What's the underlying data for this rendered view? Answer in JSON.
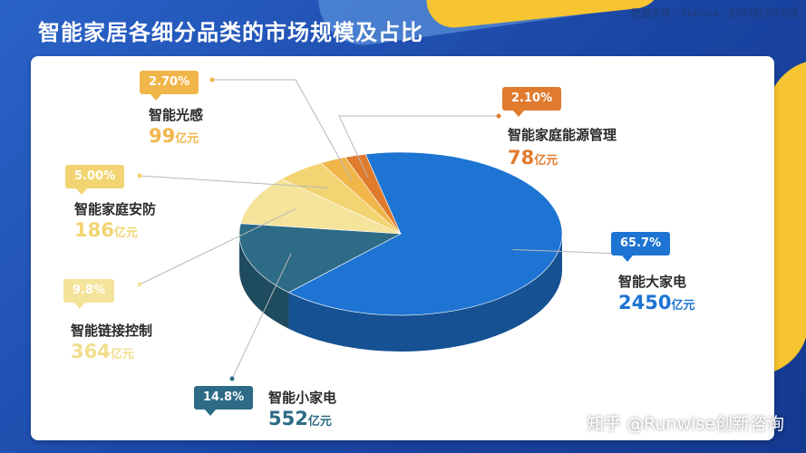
{
  "header": {
    "title": "智能家居各细分品类的市场规模及占比",
    "source": "数据来源：Statista、招商银行研究院"
  },
  "watermark": "知乎 @Runwise创新咨询",
  "unit": "亿元",
  "chart_data": {
    "type": "pie",
    "slices": [
      {
        "name": "智能大家电",
        "value": 2450,
        "percent": "65.7%",
        "color": "#1e74d2"
      },
      {
        "name": "智能小家电",
        "value": 552,
        "percent": "14.8%",
        "color": "#2d6b86"
      },
      {
        "name": "智能链接控制",
        "value": 364,
        "percent": "9.8%",
        "color": "#f4e39a"
      },
      {
        "name": "智能家庭安防",
        "value": 186,
        "percent": "5.00%",
        "color": "#f2d472"
      },
      {
        "name": "智能光感",
        "value": 99,
        "percent": "2.70%",
        "color": "#f1b64a"
      },
      {
        "name": "智能家庭能源管理",
        "value": 78,
        "percent": "2.10%",
        "color": "#e07b2e"
      }
    ]
  },
  "labels": {
    "big_appliance": {
      "percent": "65.7%",
      "name": "智能大家电",
      "value": "2450",
      "unit": "亿元",
      "color": "#1e74d2"
    },
    "small_appliance": {
      "percent": "14.8%",
      "name": "智能小家电",
      "value": "552",
      "unit": "亿元",
      "color": "#2d6b86"
    },
    "link_control": {
      "percent": "9.8%",
      "name": "智能链接控制",
      "value": "364",
      "unit": "亿元",
      "color": "#f0de8c"
    },
    "security": {
      "percent": "5.00%",
      "name": "智能家庭安防",
      "value": "186",
      "unit": "亿元",
      "color": "#f2d472"
    },
    "light": {
      "percent": "2.70%",
      "name": "智能光感",
      "value": "99",
      "unit": "亿元",
      "color": "#f1b64a"
    },
    "energy": {
      "percent": "2.10%",
      "name": "智能家庭能源管理",
      "value": "78",
      "unit": "亿元",
      "color": "#e07b2e"
    }
  }
}
